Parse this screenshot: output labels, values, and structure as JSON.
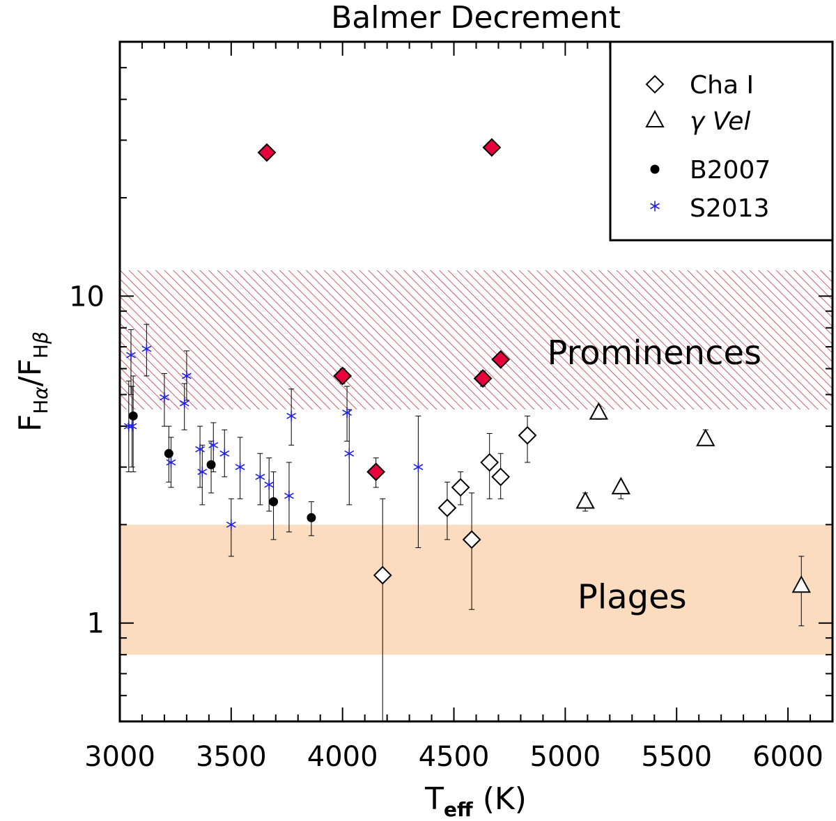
{
  "chart_data": {
    "type": "scatter",
    "title": "Balmer Decrement",
    "xlabel": {
      "main": "T",
      "sub": "eff",
      "units": "(K)"
    },
    "ylabel": {
      "f1": "F",
      "sub1a": "H",
      "sub1b": "α",
      "slash": "/",
      "f2": "F",
      "sub2a": "H",
      "sub2b": "β"
    },
    "xlim": [
      3000,
      6200
    ],
    "ylim": [
      0.5,
      60
    ],
    "yscale": "log",
    "xticks": [
      3000,
      3500,
      4000,
      4500,
      5000,
      5500,
      6000
    ],
    "xtick_labels": [
      "3000",
      "3500",
      "4000",
      "4500",
      "5000",
      "5500",
      "6000"
    ],
    "yticks": [
      1,
      10
    ],
    "ytick_labels": [
      "1",
      "10"
    ],
    "regions": [
      {
        "name": "Prominences",
        "y0": 4.5,
        "y1": 12,
        "style": "hatched",
        "color": "#c0283a"
      },
      {
        "name": "Plages",
        "y0": 0.8,
        "y1": 2.0,
        "style": "filled",
        "color": "#fcdcbf"
      }
    ],
    "legend": {
      "position": "top-right",
      "entries": [
        {
          "label": "Cha I",
          "symbol": "diamond-open"
        },
        {
          "label": "γ Vel",
          "symbol": "triangle-open"
        },
        {
          "label": "B2007",
          "symbol": "dot-filled"
        },
        {
          "label": "S2013",
          "symbol": "asterisk"
        }
      ]
    },
    "colors": {
      "highlight": "#e8003c",
      "s2013": "#2020e0",
      "ink": "#000000"
    },
    "series": [
      {
        "name": "S2013",
        "symbol": "asterisk",
        "points": [
          {
            "x": 3040,
            "y": 4.0,
            "lo": 2.9,
            "hi": 5.5
          },
          {
            "x": 3050,
            "y": 6.6,
            "lo": 5.0,
            "hi": 7.9
          },
          {
            "x": 3055,
            "y": 4.0,
            "lo": 3.0,
            "hi": 5.3
          },
          {
            "x": 3120,
            "y": 6.9,
            "lo": 5.7,
            "hi": 8.2
          },
          {
            "x": 3200,
            "y": 4.9,
            "lo": 4.0,
            "hi": 5.8
          },
          {
            "x": 3230,
            "y": 3.1,
            "lo": 2.6,
            "hi": 3.7
          },
          {
            "x": 3290,
            "y": 4.7,
            "lo": 3.9,
            "hi": 5.4
          },
          {
            "x": 3300,
            "y": 5.7,
            "lo": 4.8,
            "hi": 6.8
          },
          {
            "x": 3360,
            "y": 3.4,
            "lo": 2.6,
            "hi": 4.0
          },
          {
            "x": 3370,
            "y": 2.9,
            "lo": 2.3,
            "hi": 3.5
          },
          {
            "x": 3420,
            "y": 3.5,
            "lo": 2.9,
            "hi": 4.1
          },
          {
            "x": 3470,
            "y": 3.3,
            "lo": 2.8,
            "hi": 3.9
          },
          {
            "x": 3500,
            "y": 2.0,
            "lo": 1.6,
            "hi": 2.4
          },
          {
            "x": 3540,
            "y": 3.0,
            "lo": 2.4,
            "hi": 3.7
          },
          {
            "x": 3630,
            "y": 2.8,
            "lo": 2.3,
            "hi": 3.3
          },
          {
            "x": 3670,
            "y": 2.65,
            "lo": 2.2,
            "hi": 3.2
          },
          {
            "x": 3760,
            "y": 2.45,
            "lo": 1.9,
            "hi": 3.1
          },
          {
            "x": 3770,
            "y": 4.3,
            "lo": 3.5,
            "hi": 5.2
          },
          {
            "x": 4020,
            "y": 4.4,
            "lo": 3.6,
            "hi": 5.3
          },
          {
            "x": 4030,
            "y": 3.3,
            "lo": 2.3,
            "hi": 4.5
          },
          {
            "x": 4340,
            "y": 3.0,
            "lo": 1.7,
            "hi": 4.3
          }
        ]
      },
      {
        "name": "B2007",
        "symbol": "dot-filled",
        "points": [
          {
            "x": 3060,
            "y": 4.3,
            "lo": 2.9,
            "hi": 5.7
          },
          {
            "x": 3220,
            "y": 3.3,
            "lo": 2.7,
            "hi": 4.0
          },
          {
            "x": 3410,
            "y": 3.05,
            "lo": 2.5,
            "hi": 3.6
          },
          {
            "x": 3690,
            "y": 2.35,
            "lo": 1.8,
            "hi": 2.9
          },
          {
            "x": 3860,
            "y": 2.1,
            "lo": 1.85,
            "hi": 2.35
          }
        ]
      },
      {
        "name": "Cha I",
        "symbol": "diamond-open",
        "points": [
          {
            "x": 4180,
            "y": 1.4,
            "lo": 0.5,
            "hi": 2.4
          },
          {
            "x": 4470,
            "y": 2.25,
            "lo": 1.8,
            "hi": 2.7
          },
          {
            "x": 4530,
            "y": 2.6,
            "lo": 2.3,
            "hi": 2.9
          },
          {
            "x": 4580,
            "y": 1.8,
            "lo": 1.1,
            "hi": 2.5
          },
          {
            "x": 4660,
            "y": 3.1,
            "lo": 2.4,
            "hi": 3.8
          },
          {
            "x": 4710,
            "y": 2.8,
            "lo": 2.4,
            "hi": 3.3
          },
          {
            "x": 4830,
            "y": 3.75,
            "lo": 3.1,
            "hi": 4.3
          }
        ]
      },
      {
        "name": "Cha I (red)",
        "symbol": "diamond-filled",
        "points": [
          {
            "x": 3660,
            "y": 27.5,
            "lo": 27.5,
            "hi": 27.5
          },
          {
            "x": 4000,
            "y": 5.7,
            "lo": 5.4,
            "hi": 6.0
          },
          {
            "x": 4150,
            "y": 2.9,
            "lo": 2.6,
            "hi": 3.2
          },
          {
            "x": 4630,
            "y": 5.6,
            "lo": 5.3,
            "hi": 5.9
          },
          {
            "x": 4670,
            "y": 28.5,
            "lo": 28.5,
            "hi": 28.5
          },
          {
            "x": 4710,
            "y": 6.4,
            "lo": 6.2,
            "hi": 6.6
          }
        ]
      },
      {
        "name": "γ Vel",
        "symbol": "triangle-open",
        "points": [
          {
            "x": 5090,
            "y": 2.35,
            "lo": 2.2,
            "hi": 2.5
          },
          {
            "x": 5150,
            "y": 4.4,
            "lo": 4.2,
            "hi": 4.6
          },
          {
            "x": 5250,
            "y": 2.6,
            "lo": 2.4,
            "hi": 2.7
          },
          {
            "x": 5630,
            "y": 3.65,
            "lo": 3.5,
            "hi": 3.9
          },
          {
            "x": 6060,
            "y": 1.3,
            "lo": 0.98,
            "hi": 1.6
          }
        ]
      }
    ],
    "annotations": [
      {
        "text": "Prominences",
        "x": 5400,
        "y": 6.7
      },
      {
        "text": "Plages",
        "x": 5300,
        "y": 1.2
      }
    ]
  }
}
